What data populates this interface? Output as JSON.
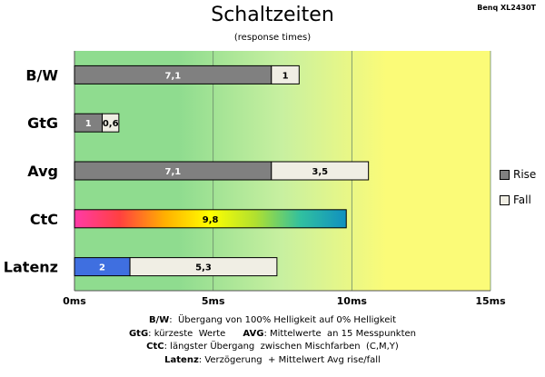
{
  "chart_data": {
    "type": "bar",
    "orientation": "horizontal",
    "stacked": true,
    "title": "Schaltzeiten",
    "subtitle": "(response times)",
    "brand": "Benq XL2430T",
    "categories": [
      "B/W",
      "GtG",
      "Avg",
      "CtC",
      "Latenz"
    ],
    "series": [
      {
        "name": "Rise",
        "values": [
          7.1,
          1,
          7.1,
          9.8,
          2
        ],
        "labels": [
          "7,1",
          "1",
          "7,1",
          "9,8",
          "2"
        ]
      },
      {
        "name": "Fall",
        "values": [
          1,
          0.6,
          3.5,
          null,
          5.3
        ],
        "labels": [
          "1",
          "0,6",
          "3,5",
          "",
          "5,3"
        ]
      }
    ],
    "xlim": [
      0,
      15
    ],
    "xticks": [
      0,
      5,
      10,
      15
    ],
    "xtick_labels": [
      "0ms",
      "5ms",
      "10ms",
      "15ms"
    ],
    "grid": true,
    "legend": "right",
    "colors": {
      "rise": "#808080",
      "fall": "#f0eee4",
      "latency": "#3f6fe0",
      "ctc_gradient": [
        "#ff3aa8",
        "#ff4040",
        "#ffb000",
        "#ffff00",
        "#b0e030",
        "#30c0a0",
        "#1090c0"
      ],
      "bg_green": "#8fdc8f",
      "bg_light_green": "#c8f0a0",
      "bg_yellow": "#fbfb78"
    }
  },
  "notes": [
    {
      "label": "B/W",
      "text": ":  Übergang von 100% Helligkeit auf 0% Helligkeit"
    },
    {
      "label": "GtG",
      "text": ": kürzeste  Werte",
      "label2": "AVG",
      "text2": ": Mittelwerte  an 15 Messpunkten"
    },
    {
      "label": "CtC",
      "text": ": längster Übergang  zwischen Mischfarben  (C,M,Y)"
    },
    {
      "label": "Latenz",
      "text": ": Verzögerung  + Mittelwert Avg rise/fall"
    }
  ]
}
